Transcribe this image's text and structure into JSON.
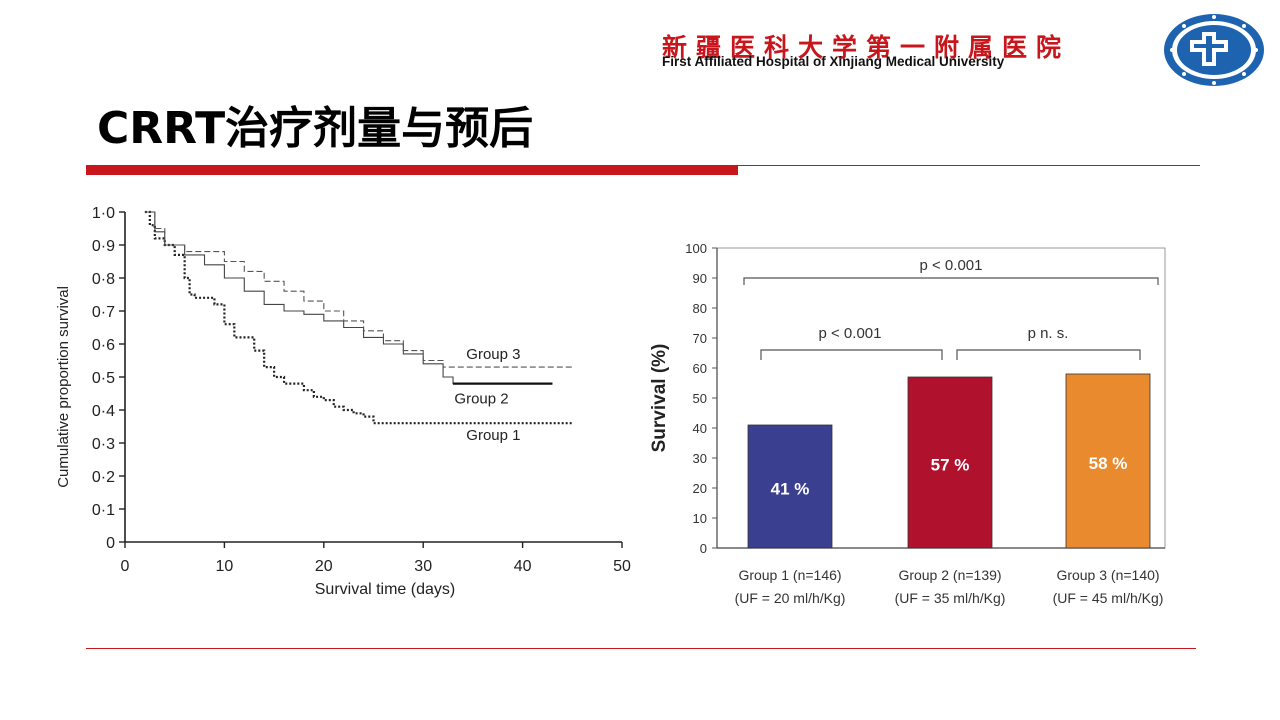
{
  "header": {
    "hospital_name_cn": "新疆医科大学第一附属医院",
    "hospital_name_en": "First Affiliated Hospital of Xinjiang Medical University"
  },
  "slide": {
    "title": "CRRT治疗剂量与预后"
  },
  "colors": {
    "accent_red": "#c8161d",
    "logo_blue": "#1d63b0",
    "bar_group1": "#3a3f8f",
    "bar_group2": "#b0122e",
    "bar_group3": "#ea8a2e"
  },
  "chart_data": [
    {
      "type": "line",
      "xlabel": "Survival time (days)",
      "ylabel": "Cumulative proportion survival",
      "xlim": [
        0,
        50
      ],
      "ylim": [
        0,
        1.0
      ],
      "x_ticks": [
        "0",
        "10",
        "20",
        "30",
        "40",
        "50"
      ],
      "y_ticks": [
        "0",
        "0·1",
        "0·2",
        "0·3",
        "0·4",
        "0·5",
        "0·6",
        "0·7",
        "0·8",
        "0·9",
        "1·0"
      ],
      "series": [
        {
          "name": "Group 1",
          "x": [
            2,
            2.5,
            3,
            4,
            5,
            6,
            6.5,
            7,
            9,
            10,
            11,
            13,
            14,
            15,
            16,
            18,
            19,
            20,
            21,
            22,
            23,
            24,
            25,
            27,
            30,
            35,
            40,
            45
          ],
          "y": [
            1.0,
            0.96,
            0.92,
            0.9,
            0.87,
            0.8,
            0.75,
            0.74,
            0.72,
            0.66,
            0.62,
            0.58,
            0.53,
            0.5,
            0.48,
            0.46,
            0.44,
            0.43,
            0.41,
            0.4,
            0.39,
            0.38,
            0.36,
            0.36,
            0.36,
            0.36,
            0.36,
            0.36
          ]
        },
        {
          "name": "Group 2",
          "x": [
            2,
            3,
            4,
            6,
            8,
            10,
            12,
            14,
            16,
            18,
            20,
            22,
            24,
            26,
            28,
            30,
            32,
            33,
            43
          ],
          "y": [
            1.0,
            0.94,
            0.9,
            0.87,
            0.84,
            0.8,
            0.76,
            0.72,
            0.7,
            0.69,
            0.67,
            0.65,
            0.62,
            0.6,
            0.57,
            0.54,
            0.5,
            0.48,
            0.48
          ]
        },
        {
          "name": "Group 3",
          "x": [
            2,
            3,
            4,
            6,
            8,
            10,
            12,
            14,
            16,
            18,
            20,
            22,
            24,
            26,
            28,
            30,
            32,
            35,
            40,
            45
          ],
          "y": [
            1.0,
            0.95,
            0.9,
            0.88,
            0.88,
            0.85,
            0.82,
            0.79,
            0.76,
            0.73,
            0.7,
            0.67,
            0.64,
            0.61,
            0.58,
            0.55,
            0.53,
            0.53,
            0.53,
            0.53
          ]
        }
      ]
    },
    {
      "type": "bar",
      "ylabel": "Survival (%)",
      "ylim": [
        0,
        100
      ],
      "y_ticks": [
        "0",
        "10",
        "20",
        "30",
        "40",
        "50",
        "60",
        "70",
        "80",
        "90",
        "100"
      ],
      "categories": [
        [
          "Group 1 (n=146)",
          "(UF = 20 ml/h/Kg)"
        ],
        [
          "Group 2 (n=139)",
          "(UF = 35 ml/h/Kg)"
        ],
        [
          "Group 3 (n=140)",
          "(UF = 45 ml/h/Kg)"
        ]
      ],
      "values": [
        41,
        57,
        58
      ],
      "value_labels": [
        "41 %",
        "57 %",
        "58 %"
      ],
      "annotations": [
        "p < 0.001",
        "p < 0.001",
        "p n. s."
      ]
    }
  ]
}
